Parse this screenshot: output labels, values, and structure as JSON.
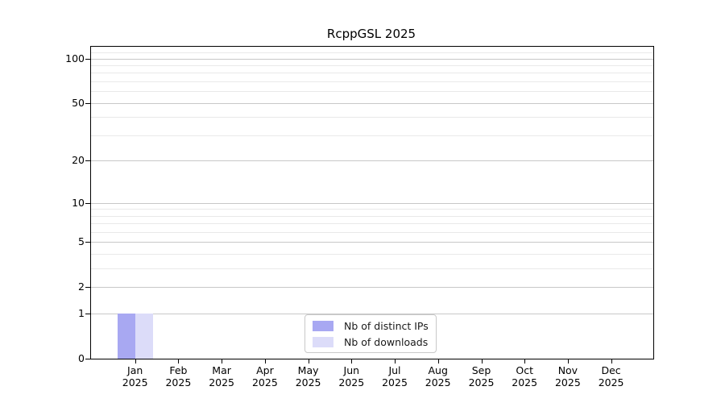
{
  "chart_data": {
    "type": "bar",
    "title": "RcppGSL 2025",
    "categories": [
      "Jan 2025",
      "Feb 2025",
      "Mar 2025",
      "Apr 2025",
      "May 2025",
      "Jun 2025",
      "Jul 2025",
      "Aug 2025",
      "Sep 2025",
      "Oct 2025",
      "Nov 2025",
      "Dec 2025"
    ],
    "series": [
      {
        "name": "Nb of distinct IPs",
        "color": "#a8a8f2",
        "values": [
          1,
          0,
          0,
          0,
          0,
          0,
          0,
          0,
          0,
          0,
          0,
          0
        ]
      },
      {
        "name": "Nb of downloads",
        "color": "#dcdcf9",
        "values": [
          1,
          0,
          0,
          0,
          0,
          0,
          0,
          0,
          0,
          0,
          0,
          0
        ]
      }
    ],
    "yscale": "log1p",
    "ylim": [
      0,
      120
    ],
    "yticks": [
      0,
      1,
      2,
      5,
      10,
      20,
      50,
      100
    ],
    "yticks_minor": [
      3,
      4,
      6,
      7,
      8,
      9,
      30,
      40,
      60,
      70,
      80,
      90,
      110
    ],
    "grid": "horizontal",
    "legend_position": "inside-bottom-center",
    "colors": {
      "grid_major": "#c8c8c8",
      "grid_minor": "#e9e9e9",
      "axis": "#000000",
      "legend_border": "#c9c9c9",
      "background": "#ffffff"
    }
  }
}
